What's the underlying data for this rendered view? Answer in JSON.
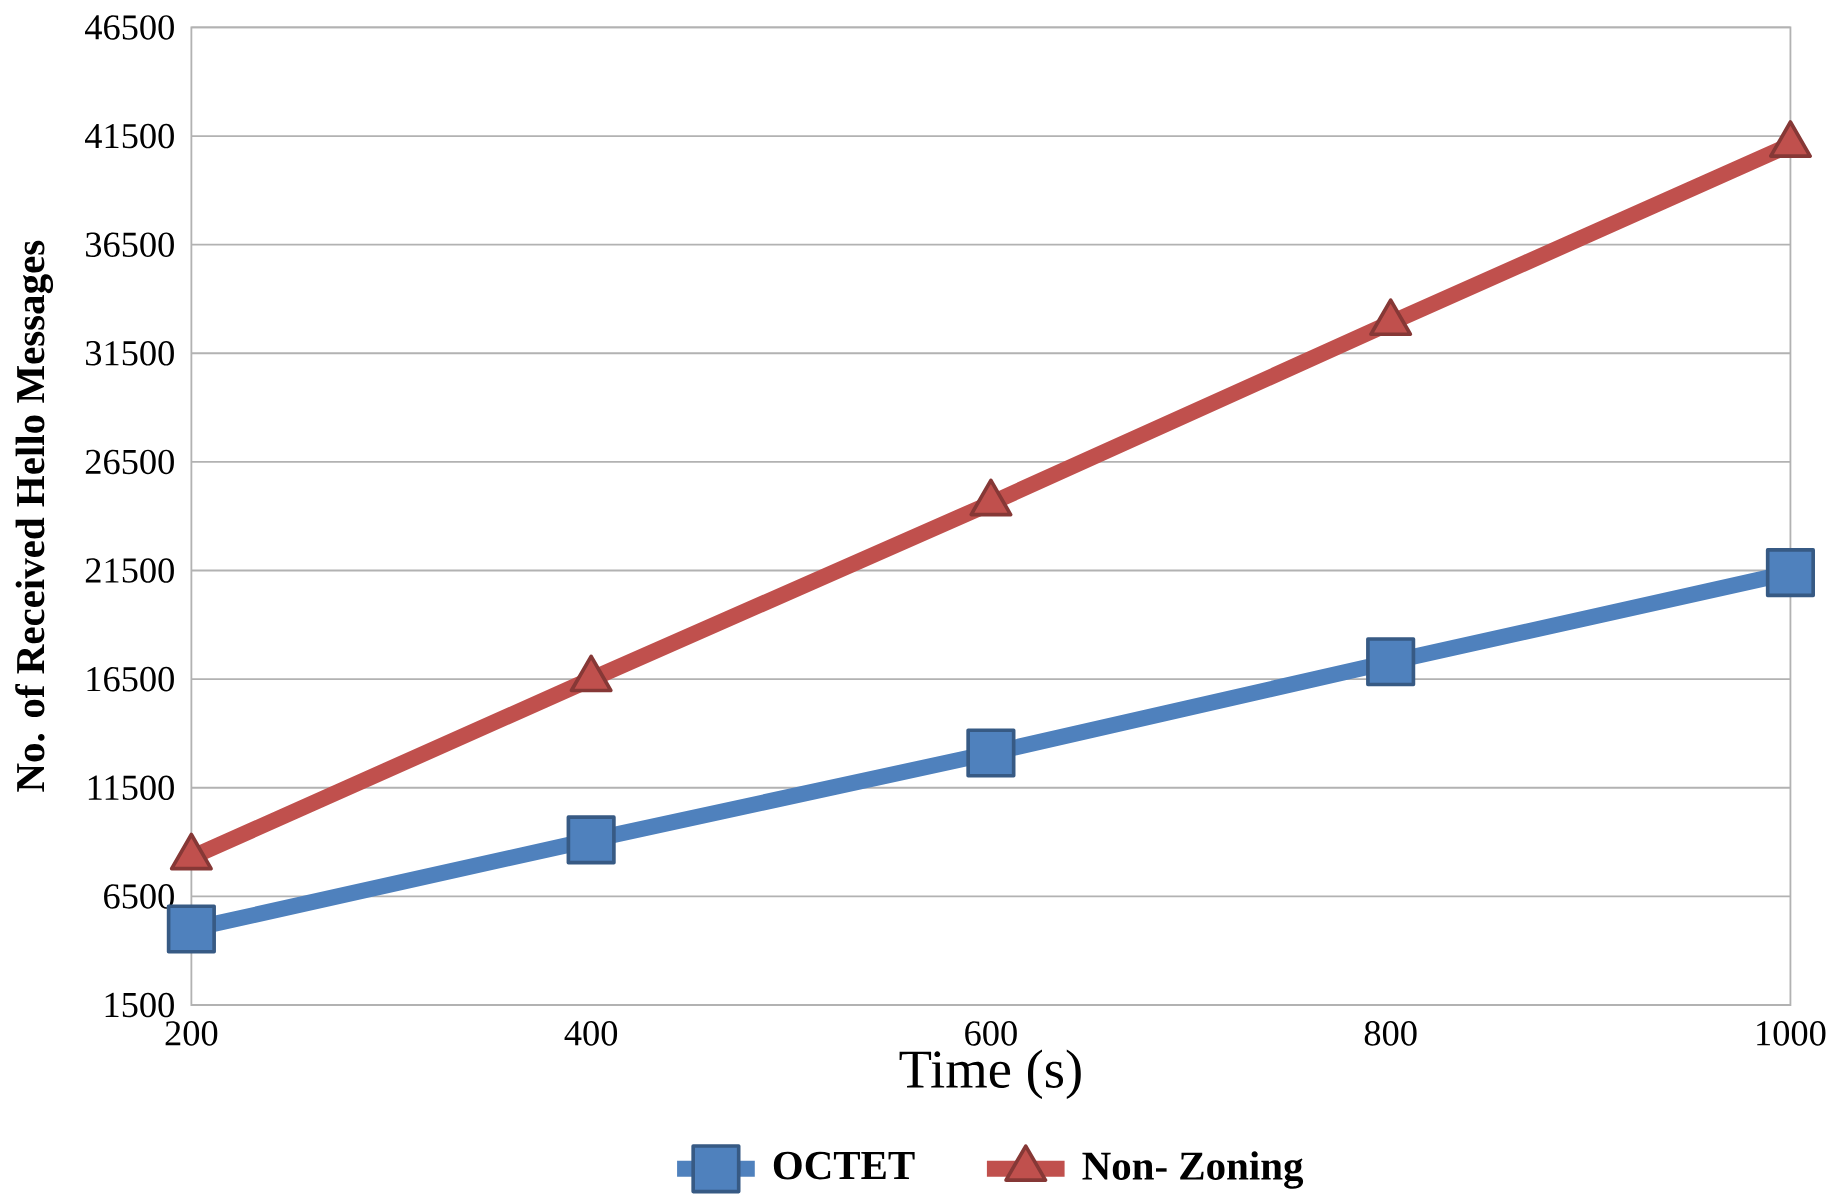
{
  "chart_data": {
    "type": "line",
    "xlabel": "Time (s)",
    "ylabel": "No. of Received Hello Messages",
    "x": [
      200,
      400,
      600,
      800,
      1000
    ],
    "series": [
      {
        "name": "OCTET",
        "color": "#4f81bd",
        "marker": "square",
        "values": [
          5000,
          9100,
          13100,
          17300,
          21400
        ]
      },
      {
        "name": "Non- Zoning",
        "color": "#c0504d",
        "marker": "triangle",
        "values": [
          8300,
          16500,
          24600,
          32900,
          41100
        ]
      }
    ],
    "xlim": [
      200,
      1000
    ],
    "xticks": [
      200,
      400,
      600,
      800,
      1000
    ],
    "ylim": [
      1500,
      46500
    ],
    "yticks": [
      1500,
      6500,
      11500,
      16500,
      21500,
      26500,
      31500,
      36500,
      41500,
      46500
    ],
    "grid": "y",
    "legend": "bottom",
    "line_style": "solid"
  }
}
